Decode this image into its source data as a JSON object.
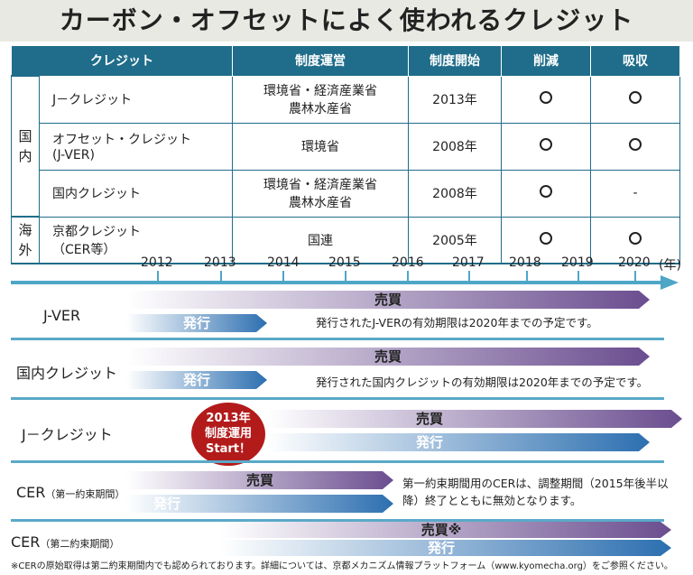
{
  "title": "カーボン・オフセットによく使われるクレジット",
  "table": {
    "headers": [
      "クレジット",
      "制度運営",
      "制度開始",
      "削減",
      "吸収"
    ],
    "regions": [
      {
        "label_lines": [
          "国",
          "内"
        ]
      },
      {
        "label_lines": [
          "海",
          "外"
        ]
      }
    ],
    "rows": [
      {
        "name_lines": [
          "J－クレジット"
        ],
        "org_lines": [
          "環境省・経済産業省",
          "農林水産省"
        ],
        "start": "2013年",
        "reduction": "○",
        "absorption": "○"
      },
      {
        "name_lines": [
          "オフセット・クレジット",
          "(J-VER)"
        ],
        "org_lines": [
          "環境省"
        ],
        "start": "2008年",
        "reduction": "○",
        "absorption": "○"
      },
      {
        "name_lines": [
          "国内クレジット"
        ],
        "org_lines": [
          "環境省・経済産業省",
          "農林水産省"
        ],
        "start": "2008年",
        "reduction": "○",
        "absorption": "-"
      },
      {
        "name_lines": [
          "京都クレジット",
          "（CER等）"
        ],
        "org_lines": [
          "国連"
        ],
        "start": "2005年",
        "reduction": "○",
        "absorption": "○"
      }
    ]
  },
  "timeline": {
    "years": [
      "2012",
      "2013",
      "2014",
      "2015",
      "2016",
      "2017",
      "2018",
      "2019",
      "2020"
    ],
    "unit": "(年)",
    "rows": [
      {
        "label": "J-VER",
        "label_small": "",
        "sell": "売買",
        "issue": "発行",
        "note": "発行されたJ-VERの有効期限は2020年までの予定です。"
      },
      {
        "label": "国内クレジット",
        "label_small": "",
        "sell": "売買",
        "issue": "発行",
        "note": "発行された国内クレジットの有効期限は2020年までの予定です。"
      },
      {
        "label": "J－クレジット",
        "label_small": "",
        "sell": "売買",
        "issue": "発行",
        "note": "",
        "badge_lines": [
          "2013年",
          "制度運用",
          "Start！"
        ]
      },
      {
        "label": "CER",
        "label_small": "（第一約束期間）",
        "sell": "売買",
        "issue": "発行",
        "note_lines": [
          "第一約束期間用のCERは、調整期間（2015年後半以",
          "降）終了とともに無効となります。"
        ]
      },
      {
        "label": "CER",
        "label_small": "（第二約束期間）",
        "sell": "売買※",
        "issue": "発行",
        "note": ""
      }
    ]
  },
  "footnote": "※CERの原始取得は第二約束期間内でも認められております。詳細については、京都メカニズム情報プラットフォーム（www.kyomecha.org）をご参照ください。",
  "colors": {
    "header": "#1f6d8a",
    "axis": "#4ea6c7",
    "sell_bar": "#6a4d8f",
    "issue_bar": "#2c6fb0",
    "badge": "#b31b1b"
  }
}
